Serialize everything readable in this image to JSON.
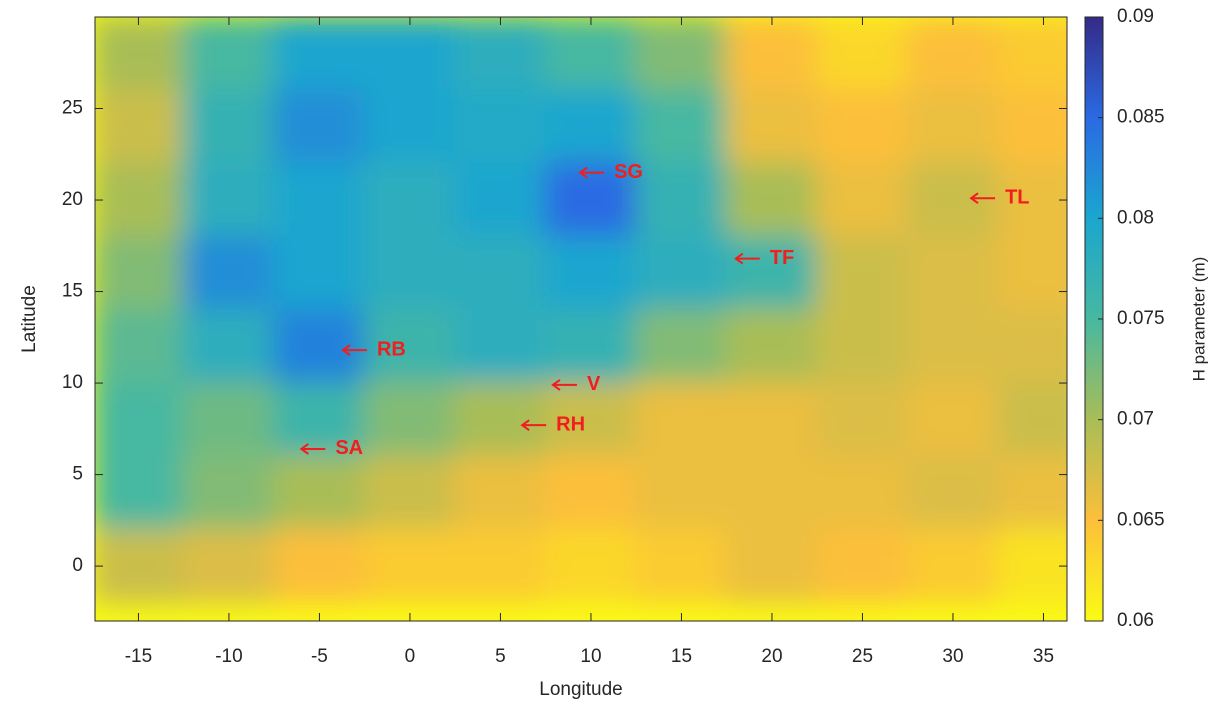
{
  "chart_data": {
    "type": "heatmap",
    "x_label": "Longitude",
    "y_label": "Latitude",
    "colorbar_label": "H parameter (m)",
    "xlim": [
      -17.4,
      36.3
    ],
    "ylim": [
      -3,
      30
    ],
    "xticks": [
      -15,
      -10,
      -5,
      0,
      5,
      10,
      15,
      20,
      25,
      30,
      35
    ],
    "yticks": [
      0,
      5,
      10,
      15,
      20,
      25
    ],
    "clim": [
      0.06,
      0.09
    ],
    "cticks": [
      0.06,
      0.065,
      0.07,
      0.075,
      0.08,
      0.085,
      0.09
    ],
    "colormap": [
      "#f9fb15",
      "#fcbf3a",
      "#a9bd57",
      "#47b8a1",
      "#1ba6cf",
      "#2a6ae3",
      "#352a87"
    ],
    "x": [
      -15,
      -10,
      -5,
      0,
      5,
      10,
      15,
      20,
      25,
      30,
      35
    ],
    "y": [
      28,
      24,
      20,
      16,
      12,
      8,
      4,
      0
    ],
    "z": [
      [
        0.07,
        0.075,
        0.08,
        0.08,
        0.078,
        0.075,
        0.072,
        0.065,
        0.063,
        0.065,
        0.064
      ],
      [
        0.068,
        0.077,
        0.082,
        0.08,
        0.079,
        0.08,
        0.075,
        0.066,
        0.065,
        0.066,
        0.065
      ],
      [
        0.07,
        0.078,
        0.08,
        0.078,
        0.08,
        0.085,
        0.077,
        0.07,
        0.066,
        0.068,
        0.066
      ],
      [
        0.072,
        0.082,
        0.08,
        0.078,
        0.078,
        0.08,
        0.078,
        0.076,
        0.068,
        0.067,
        0.066
      ],
      [
        0.074,
        0.078,
        0.083,
        0.076,
        0.078,
        0.077,
        0.072,
        0.07,
        0.068,
        0.067,
        0.067
      ],
      [
        0.075,
        0.073,
        0.076,
        0.072,
        0.07,
        0.068,
        0.066,
        0.066,
        0.067,
        0.066,
        0.068
      ],
      [
        0.075,
        0.072,
        0.07,
        0.068,
        0.066,
        0.065,
        0.066,
        0.066,
        0.066,
        0.067,
        0.066
      ],
      [
        0.068,
        0.067,
        0.065,
        0.064,
        0.064,
        0.063,
        0.064,
        0.066,
        0.065,
        0.064,
        0.062
      ]
    ],
    "annotations": [
      {
        "text": "SG",
        "x": 9.4,
        "y": 21.5
      },
      {
        "text": "TL",
        "x": 31.0,
        "y": 20.1
      },
      {
        "text": "TF",
        "x": 18.0,
        "y": 16.8
      },
      {
        "text": "RB",
        "x": -3.7,
        "y": 11.8
      },
      {
        "text": "V",
        "x": 7.9,
        "y": 9.9
      },
      {
        "text": "RH",
        "x": 6.2,
        "y": 7.7
      },
      {
        "text": "SA",
        "x": -6.0,
        "y": 6.4
      }
    ]
  }
}
